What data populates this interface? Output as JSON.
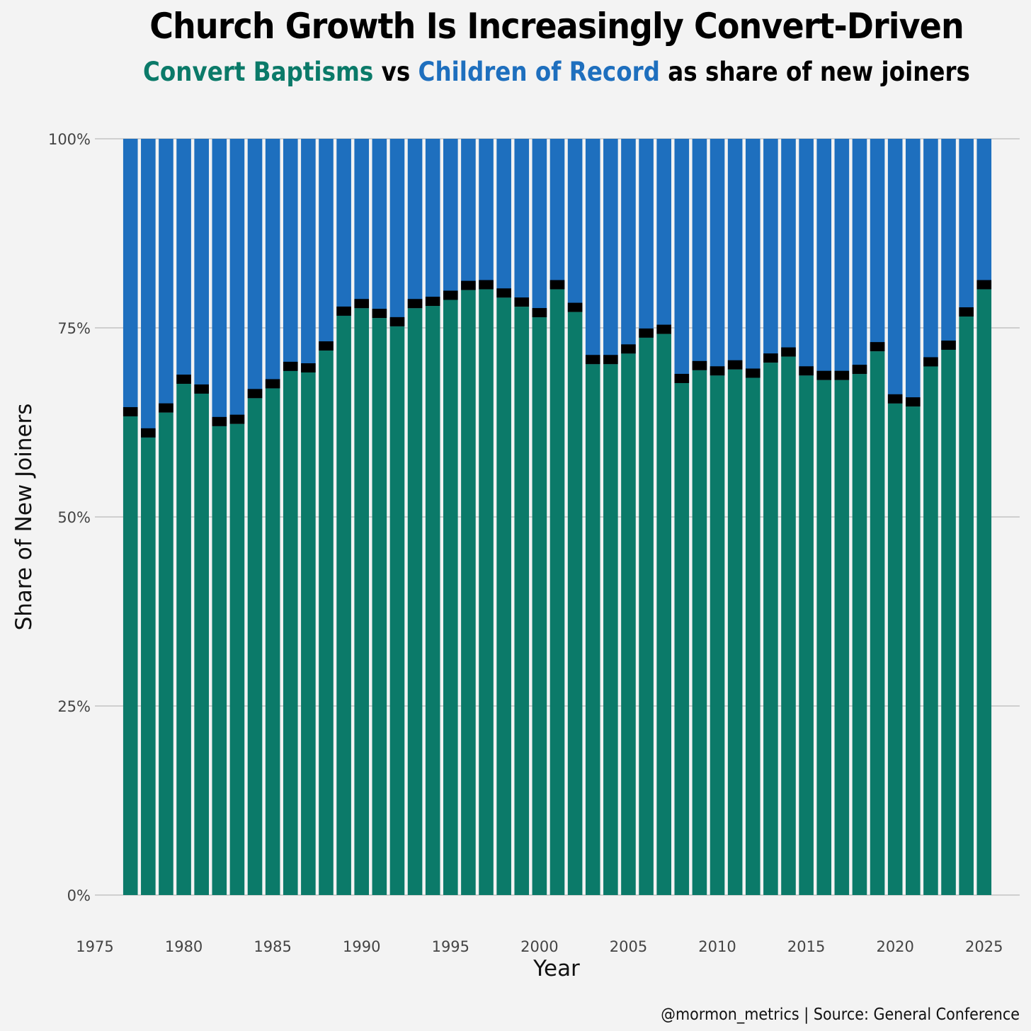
{
  "title": "Church Growth Is Increasingly Convert-Driven",
  "subtitle": {
    "part1": "Convert Baptisms",
    "part2": " vs ",
    "part3": "Children of Record",
    "part4": " as share of new joiners"
  },
  "caption": "@mormon_metrics | Source: General Conference",
  "colors": {
    "convert": "#0b7a69",
    "children": "#1e6fbe",
    "separator": "#000000",
    "grid": "#cfcfcf",
    "background": "#f3f3f3"
  },
  "chart_data": {
    "type": "bar",
    "stacked": true,
    "normalized": true,
    "xlabel": "Year",
    "ylabel": "Share of New Joiners",
    "xlim": [
      1975,
      2027
    ],
    "ylim": [
      0,
      100
    ],
    "x_ticks": [
      1975,
      1980,
      1985,
      1990,
      1995,
      2000,
      2005,
      2010,
      2015,
      2020,
      2025
    ],
    "y_ticks": [
      0,
      25,
      50,
      75,
      100
    ],
    "y_tick_labels": [
      "0%",
      "25%",
      "50%",
      "75%",
      "100%"
    ],
    "grid": "horizontal",
    "categories": [
      1977,
      1978,
      1979,
      1980,
      1981,
      1982,
      1983,
      1984,
      1985,
      1986,
      1987,
      1988,
      1989,
      1990,
      1991,
      1992,
      1993,
      1994,
      1995,
      1996,
      1997,
      1998,
      1999,
      2000,
      2001,
      2002,
      2003,
      2004,
      2005,
      2006,
      2007,
      2008,
      2009,
      2010,
      2011,
      2012,
      2013,
      2014,
      2015,
      2016,
      2017,
      2018,
      2019,
      2020,
      2021,
      2022,
      2023,
      2024,
      2025
    ],
    "series": [
      {
        "name": "Convert Baptisms",
        "values": [
          63.3,
          60.5,
          63.8,
          67.6,
          66.3,
          62.0,
          62.3,
          65.7,
          67.0,
          69.3,
          69.1,
          72.0,
          76.6,
          77.6,
          76.3,
          75.2,
          77.6,
          77.9,
          78.7,
          80.0,
          80.1,
          79.0,
          77.8,
          76.4,
          80.1,
          77.1,
          70.2,
          70.2,
          71.6,
          73.7,
          74.2,
          67.7,
          69.4,
          68.7,
          69.5,
          68.4,
          70.4,
          71.2,
          68.7,
          68.1,
          68.1,
          68.9,
          71.9,
          65.0,
          64.6,
          69.9,
          72.1,
          76.5,
          80.1
        ]
      },
      {
        "name": "Children of Record",
        "values": [
          36.7,
          39.5,
          36.2,
          32.4,
          33.7,
          38.0,
          37.7,
          34.3,
          33.0,
          30.7,
          30.9,
          28.0,
          23.4,
          22.4,
          23.7,
          24.8,
          22.4,
          22.1,
          21.3,
          20.0,
          19.9,
          21.0,
          22.2,
          23.6,
          19.9,
          22.9,
          29.8,
          29.8,
          28.4,
          26.3,
          25.8,
          32.3,
          30.6,
          31.3,
          30.5,
          31.6,
          29.6,
          28.8,
          31.3,
          31.9,
          31.9,
          31.1,
          28.1,
          35.0,
          35.4,
          30.1,
          27.9,
          23.5,
          19.9
        ]
      }
    ]
  }
}
